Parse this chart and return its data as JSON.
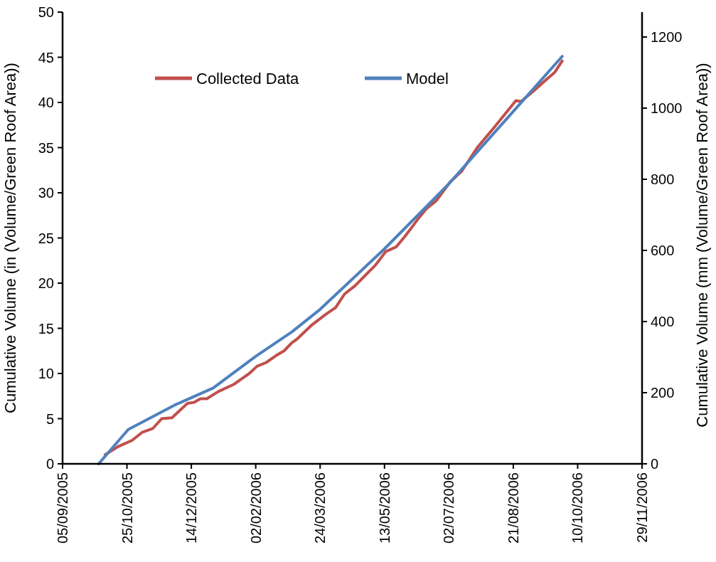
{
  "chart_data": {
    "type": "line",
    "ylabel": "Cumulative Volume (in (Volume/Green Roof Area))",
    "y2label": "Cumulative Volume (mm (Volume/Green Roof Area))",
    "xlim": [
      "2005-09-05",
      "2006-11-29"
    ],
    "xticks": [
      {
        "value": "2005-09-05",
        "label": "05/09/2005"
      },
      {
        "value": "2005-10-25",
        "label": "25/10/2005"
      },
      {
        "value": "2005-12-14",
        "label": "14/12/2005"
      },
      {
        "value": "2006-02-02",
        "label": "02/02/2006"
      },
      {
        "value": "2006-03-24",
        "label": "24/03/2006"
      },
      {
        "value": "2006-05-13",
        "label": "13/05/2006"
      },
      {
        "value": "2006-07-02",
        "label": "02/07/2006"
      },
      {
        "value": "2006-08-21",
        "label": "21/08/2006"
      },
      {
        "value": "2006-10-10",
        "label": "10/10/2006"
      },
      {
        "value": "2006-11-29",
        "label": "29/11/2006"
      }
    ],
    "ylim": [
      0,
      50
    ],
    "yticks": [
      0,
      5,
      10,
      15,
      20,
      25,
      30,
      35,
      40,
      45,
      50
    ],
    "y2lim": [
      0,
      1270
    ],
    "y2ticks": [
      0,
      200,
      400,
      600,
      800,
      1000,
      1200
    ],
    "grid": false,
    "legend": "top left",
    "marker": "none",
    "line_style": "solid",
    "series": [
      {
        "name": "Collected Data",
        "color": "#c0504d",
        "x": [
          "2005-10-08",
          "2005-10-18",
          "2005-10-29",
          "2005-11-06",
          "2005-11-14",
          "2005-11-21",
          "2005-11-29",
          "2005-12-11",
          "2005-12-16",
          "2005-12-21",
          "2005-12-26",
          "2006-01-04",
          "2006-01-16",
          "2006-01-23",
          "2006-01-28",
          "2006-02-03",
          "2006-02-10",
          "2006-02-18",
          "2006-02-24",
          "2006-03-02",
          "2006-03-06",
          "2006-03-17",
          "2006-03-28",
          "2006-04-05",
          "2006-04-12",
          "2006-04-20",
          "2006-04-29",
          "2006-05-06",
          "2006-05-14",
          "2006-05-22",
          "2006-05-29",
          "2006-06-08",
          "2006-06-15",
          "2006-06-22",
          "2006-07-03",
          "2006-07-12",
          "2006-07-24",
          "2006-08-06",
          "2006-08-23",
          "2006-08-27",
          "2006-09-06",
          "2006-09-17",
          "2006-09-22",
          "2006-09-28"
        ],
        "values": [
          1.0,
          1.9,
          2.6,
          3.5,
          3.9,
          5.0,
          5.1,
          6.7,
          6.8,
          7.2,
          7.2,
          8.0,
          8.8,
          9.5,
          10.0,
          10.8,
          11.2,
          12.0,
          12.5,
          13.4,
          13.8,
          15.3,
          16.5,
          17.3,
          18.8,
          19.7,
          21.0,
          22.0,
          23.5,
          24.0,
          25.2,
          27.1,
          28.3,
          29.1,
          31.2,
          32.4,
          35.0,
          37.2,
          40.2,
          40.1,
          41.3,
          42.7,
          43.3,
          44.6
        ]
      },
      {
        "name": "Model",
        "color": "#4f81bd",
        "x": [
          "2005-10-03",
          "2005-10-26",
          "2005-12-01",
          "2005-12-31",
          "2006-02-02",
          "2006-03-02",
          "2006-03-24",
          "2006-05-13",
          "2006-07-02",
          "2006-08-21",
          "2006-09-28"
        ],
        "values": [
          0,
          3.8,
          6.5,
          8.4,
          11.9,
          14.6,
          17.1,
          23.8,
          31.0,
          39.0,
          45.1
        ]
      }
    ]
  }
}
